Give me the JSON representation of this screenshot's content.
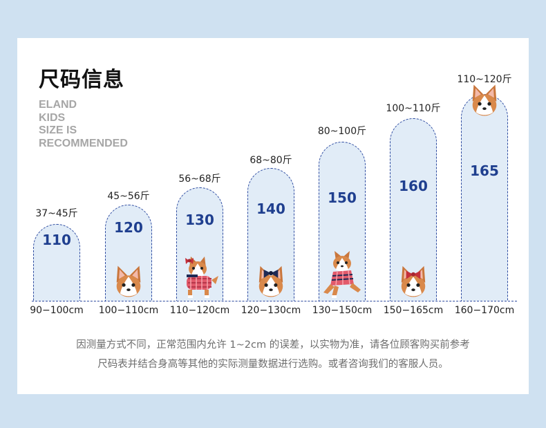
{
  "title": "尺码信息",
  "brand_lines": [
    "ELAND",
    "KIDS",
    "SIZE IS",
    "RECOMMENDED"
  ],
  "sizes": [
    {
      "weight": "37~45斤",
      "size": "110",
      "height": "90−100cm",
      "dog": "none"
    },
    {
      "weight": "45~56斤",
      "size": "120",
      "height": "100−110cm",
      "dog": "corgi-head"
    },
    {
      "weight": "56~68斤",
      "size": "130",
      "height": "110−120cm",
      "dog": "corgi-sweater-bow"
    },
    {
      "weight": "68~80斤",
      "size": "140",
      "height": "120−130cm",
      "dog": "corgi-head-bow"
    },
    {
      "weight": "80~100斤",
      "size": "150",
      "height": "130−150cm",
      "dog": "corgi-jumping"
    },
    {
      "weight": "100~110斤",
      "size": "160",
      "height": "150−165cm",
      "dog": "corgi-head-red-bow"
    },
    {
      "weight": "110~120斤",
      "size": "165",
      "height": "160−170cm",
      "dog": "corgi-head"
    }
  ],
  "notes": [
    "因测量方式不同，正常范围内允许 1~2cm 的误差，以实物为准，请各位顾客购买前参考",
    "尺码表并结合身高等其他的实际测量数据进行选购。或者咨询我们的客服人员。"
  ],
  "colors": {
    "page_background": "#cfe1f1",
    "arch_fill": "#e1ecf7",
    "arch_border": "#2d4aa0",
    "size_number": "#1f3f8f",
    "brand_text": "#a6a6a6",
    "note_text": "#6d6d6d"
  }
}
